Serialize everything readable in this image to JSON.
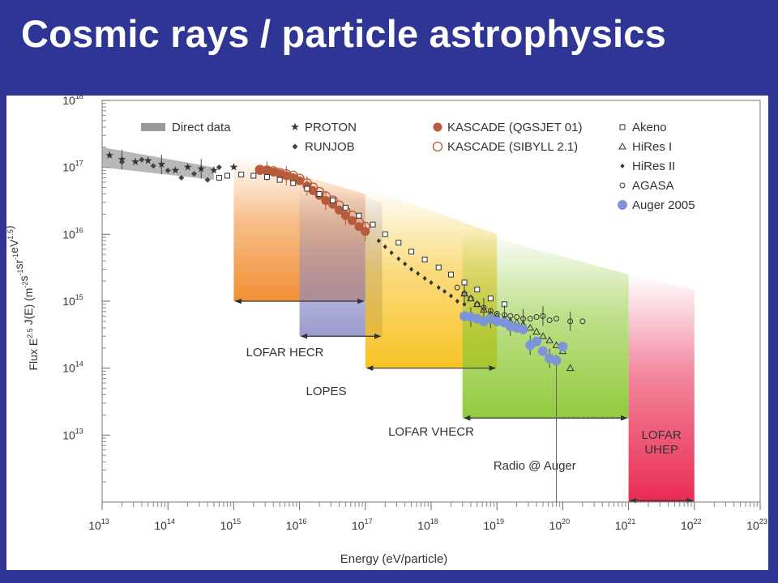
{
  "slide": {
    "title": "Cosmic rays / particle astrophysics"
  },
  "colors": {
    "background": "#2f3594",
    "kascade_qgsjet": "#b85a3c",
    "auger": "#7d95d8",
    "lofar_hecr": "#f08a2a",
    "lopes": "#8a8ac8",
    "lofar_vhecr": "#f7c01a",
    "radio_auger": "#8cc832",
    "lofar_uhep": "#e8204a",
    "direct_band": "#9a9a9a"
  },
  "chart_data": {
    "type": "scatter",
    "xlabel": "Energy (eV/particle)",
    "ylabel": "Flux E^2.5 J(E) (m^-2 s^-1 sr^-1 eV^1.5)",
    "x_scale": "log",
    "y_scale": "log",
    "xlim": [
      10000000000000.0,
      1e+23
    ],
    "ylim": [
      1000000000000.0,
      1e+18
    ],
    "x_ticks": [
      {
        "value": 10000000000000.0,
        "base": "10",
        "exp": "13"
      },
      {
        "value": 100000000000000.0,
        "base": "10",
        "exp": "14"
      },
      {
        "value": 1000000000000000.0,
        "base": "10",
        "exp": "15"
      },
      {
        "value": 1e+16,
        "base": "10",
        "exp": "16"
      },
      {
        "value": 1e+17,
        "base": "10",
        "exp": "17"
      },
      {
        "value": 1e+18,
        "base": "10",
        "exp": "18"
      },
      {
        "value": 1e+19,
        "base": "10",
        "exp": "19"
      },
      {
        "value": 1e+20,
        "base": "10",
        "exp": "20"
      },
      {
        "value": 1e+21,
        "base": "10",
        "exp": "21"
      },
      {
        "value": 1e+22,
        "base": "10",
        "exp": "22"
      },
      {
        "value": 1e+23,
        "base": "10",
        "exp": "23"
      }
    ],
    "y_ticks": [
      {
        "value": 10000000000000.0,
        "base": "10",
        "exp": "13"
      },
      {
        "value": 100000000000000.0,
        "base": "10",
        "exp": "14"
      },
      {
        "value": 1000000000000000.0,
        "base": "10",
        "exp": "15"
      },
      {
        "value": 1e+16,
        "base": "10",
        "exp": "16"
      },
      {
        "value": 1e+17,
        "base": "10",
        "exp": "17"
      },
      {
        "value": 1e+18,
        "base": "10",
        "exp": "18"
      }
    ],
    "legend": [
      {
        "label": "Direct data",
        "marker": "band"
      },
      {
        "label": "PROTON",
        "marker": "star"
      },
      {
        "label": "RUNJOB",
        "marker": "diamond"
      },
      {
        "label": "KASCADE (QGSJET 01)",
        "marker": "filled-circle"
      },
      {
        "label": "KASCADE (SIBYLL 2.1)",
        "marker": "open-circle"
      },
      {
        "label": "Akeno",
        "marker": "open-square"
      },
      {
        "label": "HiRes I",
        "marker": "open-triangle"
      },
      {
        "label": "HiRes II",
        "marker": "small-diamond"
      },
      {
        "label": "AGASA",
        "marker": "small-open-circle"
      },
      {
        "label": "Auger 2005",
        "marker": "blue-circle"
      }
    ],
    "legend_placement": "top",
    "regions": [
      {
        "label": "LOFAR HECR",
        "x_from": 1000000000000000.0,
        "x_to": 1e+17,
        "y_bottom": 1000000000000000.0,
        "y_top_left": 1.5e+17,
        "y_top_right": 4e+16
      },
      {
        "label": "LOPES",
        "x_from": 1e+16,
        "x_to": 1.8e+17,
        "y_bottom": 300000000000000.0,
        "y_top_left": 6e+16,
        "y_top_right": 3e+16
      },
      {
        "label": "LOFAR VHECR",
        "x_from": 1e+17,
        "x_to": 1e+19,
        "y_bottom": 100000000000000.0,
        "y_top_left": 5e+16,
        "y_top_right": 1e+16
      },
      {
        "label": "Radio @ Auger",
        "x_from": 3e+18,
        "x_to": 1e+21,
        "y_bottom": 18000000000000.0,
        "y_top_left": 1.2e+16,
        "y_top_right": 2500000000000000.0
      },
      {
        "label": "LOFAR UHEP",
        "x_from": 1e+21,
        "x_to": 1e+22,
        "y_bottom": 1000000000000.0,
        "y_top_left": 2500000000000000.0,
        "y_top_right": 1500000000000000.0
      }
    ],
    "series": [
      {
        "name": "Direct data",
        "kind": "band",
        "x": [
          10000000000000.0,
          500000000000000.0
        ],
        "y_low": [
          1e+17,
          6.5e+16
        ],
        "y_high": [
          2e+17,
          1e+17
        ]
      },
      {
        "name": "PROTON",
        "kind": "star",
        "x": [
          13000000000000.0,
          20000000000000.0,
          32000000000000.0,
          50000000000000.0,
          80000000000000.0,
          130000000000000.0,
          200000000000000.0,
          320000000000000.0,
          500000000000000.0,
          1000000000000000.0
        ],
        "y": [
          1.5e+17,
          1.3e+17,
          1.2e+17,
          1.25e+17,
          1.1e+17,
          9e+16,
          1e+17,
          9.5e+16,
          9e+16,
          1e+17
        ]
      },
      {
        "name": "RUNJOB",
        "kind": "diamond",
        "x": [
          20000000000000.0,
          40000000000000.0,
          60000000000000.0,
          100000000000000.0,
          160000000000000.0,
          250000000000000.0,
          400000000000000.0,
          600000000000000.0
        ],
        "y": [
          1.2e+17,
          1.3e+17,
          1.05e+17,
          9e+16,
          7e+16,
          8e+16,
          6.5e+16,
          1e+17
        ]
      },
      {
        "name": "KASCADE (QGSJET 01)",
        "kind": "filled-circle",
        "x": [
          2500000000000000.0,
          3200000000000000.0,
          4000000000000000.0,
          5000000000000000.0,
          6300000000000000.0,
          8000000000000000.0,
          1e+16,
          1.3e+16,
          1.6e+16,
          2e+16,
          2.5e+16,
          3.2e+16,
          4e+16,
          5e+16,
          6.3e+16,
          8e+16,
          1e+17
        ],
        "y": [
          9e+16,
          8.8e+16,
          8.5e+16,
          8e+16,
          7.5e+16,
          7e+16,
          6.3e+16,
          5.3e+16,
          4.5e+16,
          3.8e+16,
          3.2e+16,
          2.8e+16,
          2.3e+16,
          1.9e+16,
          1.6e+16,
          1.3e+16,
          1.1e+16
        ]
      },
      {
        "name": "KASCADE (SIBYLL 2.1)",
        "kind": "open-circle",
        "x": [
          2500000000000000.0,
          3200000000000000.0,
          4000000000000000.0,
          5000000000000000.0,
          6300000000000000.0,
          8000000000000000.0,
          1e+16,
          1.3e+16,
          1.6e+16,
          2e+16,
          2.5e+16,
          3.2e+16,
          4e+16,
          5e+16,
          6.3e+16,
          8e+16,
          1e+17
        ],
        "y": [
          9.2e+16,
          9e+16,
          8.8e+16,
          8.3e+16,
          7.9e+16,
          7.5e+16,
          6.8e+16,
          5.8e+16,
          5e+16,
          4.3e+16,
          3.7e+16,
          3.2e+16,
          2.7e+16,
          2.2e+16,
          1.9e+16,
          1.5e+16,
          1.3e+16
        ]
      },
      {
        "name": "Akeno",
        "kind": "open-square",
        "x": [
          600000000000000.0,
          800000000000000.0,
          1300000000000000.0,
          2000000000000000.0,
          3200000000000000.0,
          5000000000000000.0,
          8000000000000000.0,
          1.3e+16,
          2e+16,
          3.2e+16,
          5e+16,
          8e+16,
          1.3e+17,
          2e+17,
          3.2e+17,
          5e+17,
          8e+17,
          1.3e+18,
          2e+18,
          3.2e+18,
          5e+18,
          8e+18,
          1.3e+19
        ],
        "y": [
          7e+16,
          7.5e+16,
          7.8e+16,
          7.5e+16,
          7.2e+16,
          6.5e+16,
          5.8e+16,
          4.8e+16,
          4e+16,
          3.2e+16,
          2.5e+16,
          1.9e+16,
          1.4e+16,
          1e+16,
          7500000000000000.0,
          5500000000000000.0,
          4200000000000000.0,
          3200000000000000.0,
          2500000000000000.0,
          1900000000000000.0,
          1500000000000000.0,
          1100000000000000.0,
          900000000000000.0
        ]
      },
      {
        "name": "HiRes I",
        "kind": "open-triangle",
        "x": [
          3.2e+18,
          4e+18,
          5e+18,
          6.3e+18,
          8e+18,
          1e+19,
          1.3e+19,
          1.6e+19,
          2e+19,
          2.5e+19,
          3.2e+19,
          4e+19,
          5e+19,
          6.3e+19,
          8e+19,
          1e+20,
          1.3e+20
        ],
        "y": [
          1300000000000000.0,
          1100000000000000.0,
          900000000000000.0,
          750000000000000.0,
          650000000000000.0,
          600000000000000.0,
          550000000000000.0,
          500000000000000.0,
          480000000000000.0,
          450000000000000.0,
          400000000000000.0,
          350000000000000.0,
          300000000000000.0,
          260000000000000.0,
          220000000000000.0,
          180000000000000.0,
          100000000000000.0
        ]
      },
      {
        "name": "HiRes II",
        "kind": "small-diamond",
        "x": [
          1.6e+17,
          2e+17,
          2.5e+17,
          3.2e+17,
          4e+17,
          5e+17,
          6.3e+17,
          8e+17,
          1e+18,
          1.3e+18,
          1.6e+18,
          2e+18,
          2.5e+18,
          3.2e+18
        ],
        "y": [
          8000000000000000.0,
          6500000000000000.0,
          5300000000000000.0,
          4300000000000000.0,
          3600000000000000.0,
          3000000000000000.0,
          2600000000000000.0,
          2200000000000000.0,
          1900000000000000.0,
          1600000000000000.0,
          1400000000000000.0,
          1200000000000000.0,
          1000000000000000.0,
          900000000000000.0
        ]
      },
      {
        "name": "AGASA",
        "kind": "small-open-circle",
        "x": [
          2.5e+18,
          3.2e+18,
          4e+18,
          5e+18,
          6.3e+18,
          8e+18,
          1e+19,
          1.3e+19,
          1.6e+19,
          2e+19,
          2.5e+19,
          3.2e+19,
          4e+19,
          5e+19,
          6.3e+19,
          8e+19,
          1.3e+20,
          2e+20
        ],
        "y": [
          1600000000000000.0,
          1300000000000000.0,
          1100000000000000.0,
          900000000000000.0,
          800000000000000.0,
          720000000000000.0,
          650000000000000.0,
          620000000000000.0,
          600000000000000.0,
          580000000000000.0,
          550000000000000.0,
          550000000000000.0,
          580000000000000.0,
          600000000000000.0,
          520000000000000.0,
          550000000000000.0,
          500000000000000.0,
          500000000000000.0
        ]
      },
      {
        "name": "Auger 2005",
        "kind": "blue-circle",
        "x": [
          3.2e+18,
          4e+18,
          5e+18,
          6.3e+18,
          8e+18,
          1e+19,
          1.3e+19,
          1.6e+19,
          2e+19,
          2.5e+19,
          3.2e+19,
          4e+19,
          5e+19,
          6.3e+19,
          8e+19,
          1e+20
        ],
        "y": [
          600000000000000.0,
          580000000000000.0,
          550000000000000.0,
          500000000000000.0,
          550000000000000.0,
          500000000000000.0,
          480000000000000.0,
          420000000000000.0,
          400000000000000.0,
          380000000000000.0,
          220000000000000.0,
          250000000000000.0,
          180000000000000.0,
          140000000000000.0,
          130000000000000.0,
          210000000000000.0
        ]
      }
    ]
  }
}
